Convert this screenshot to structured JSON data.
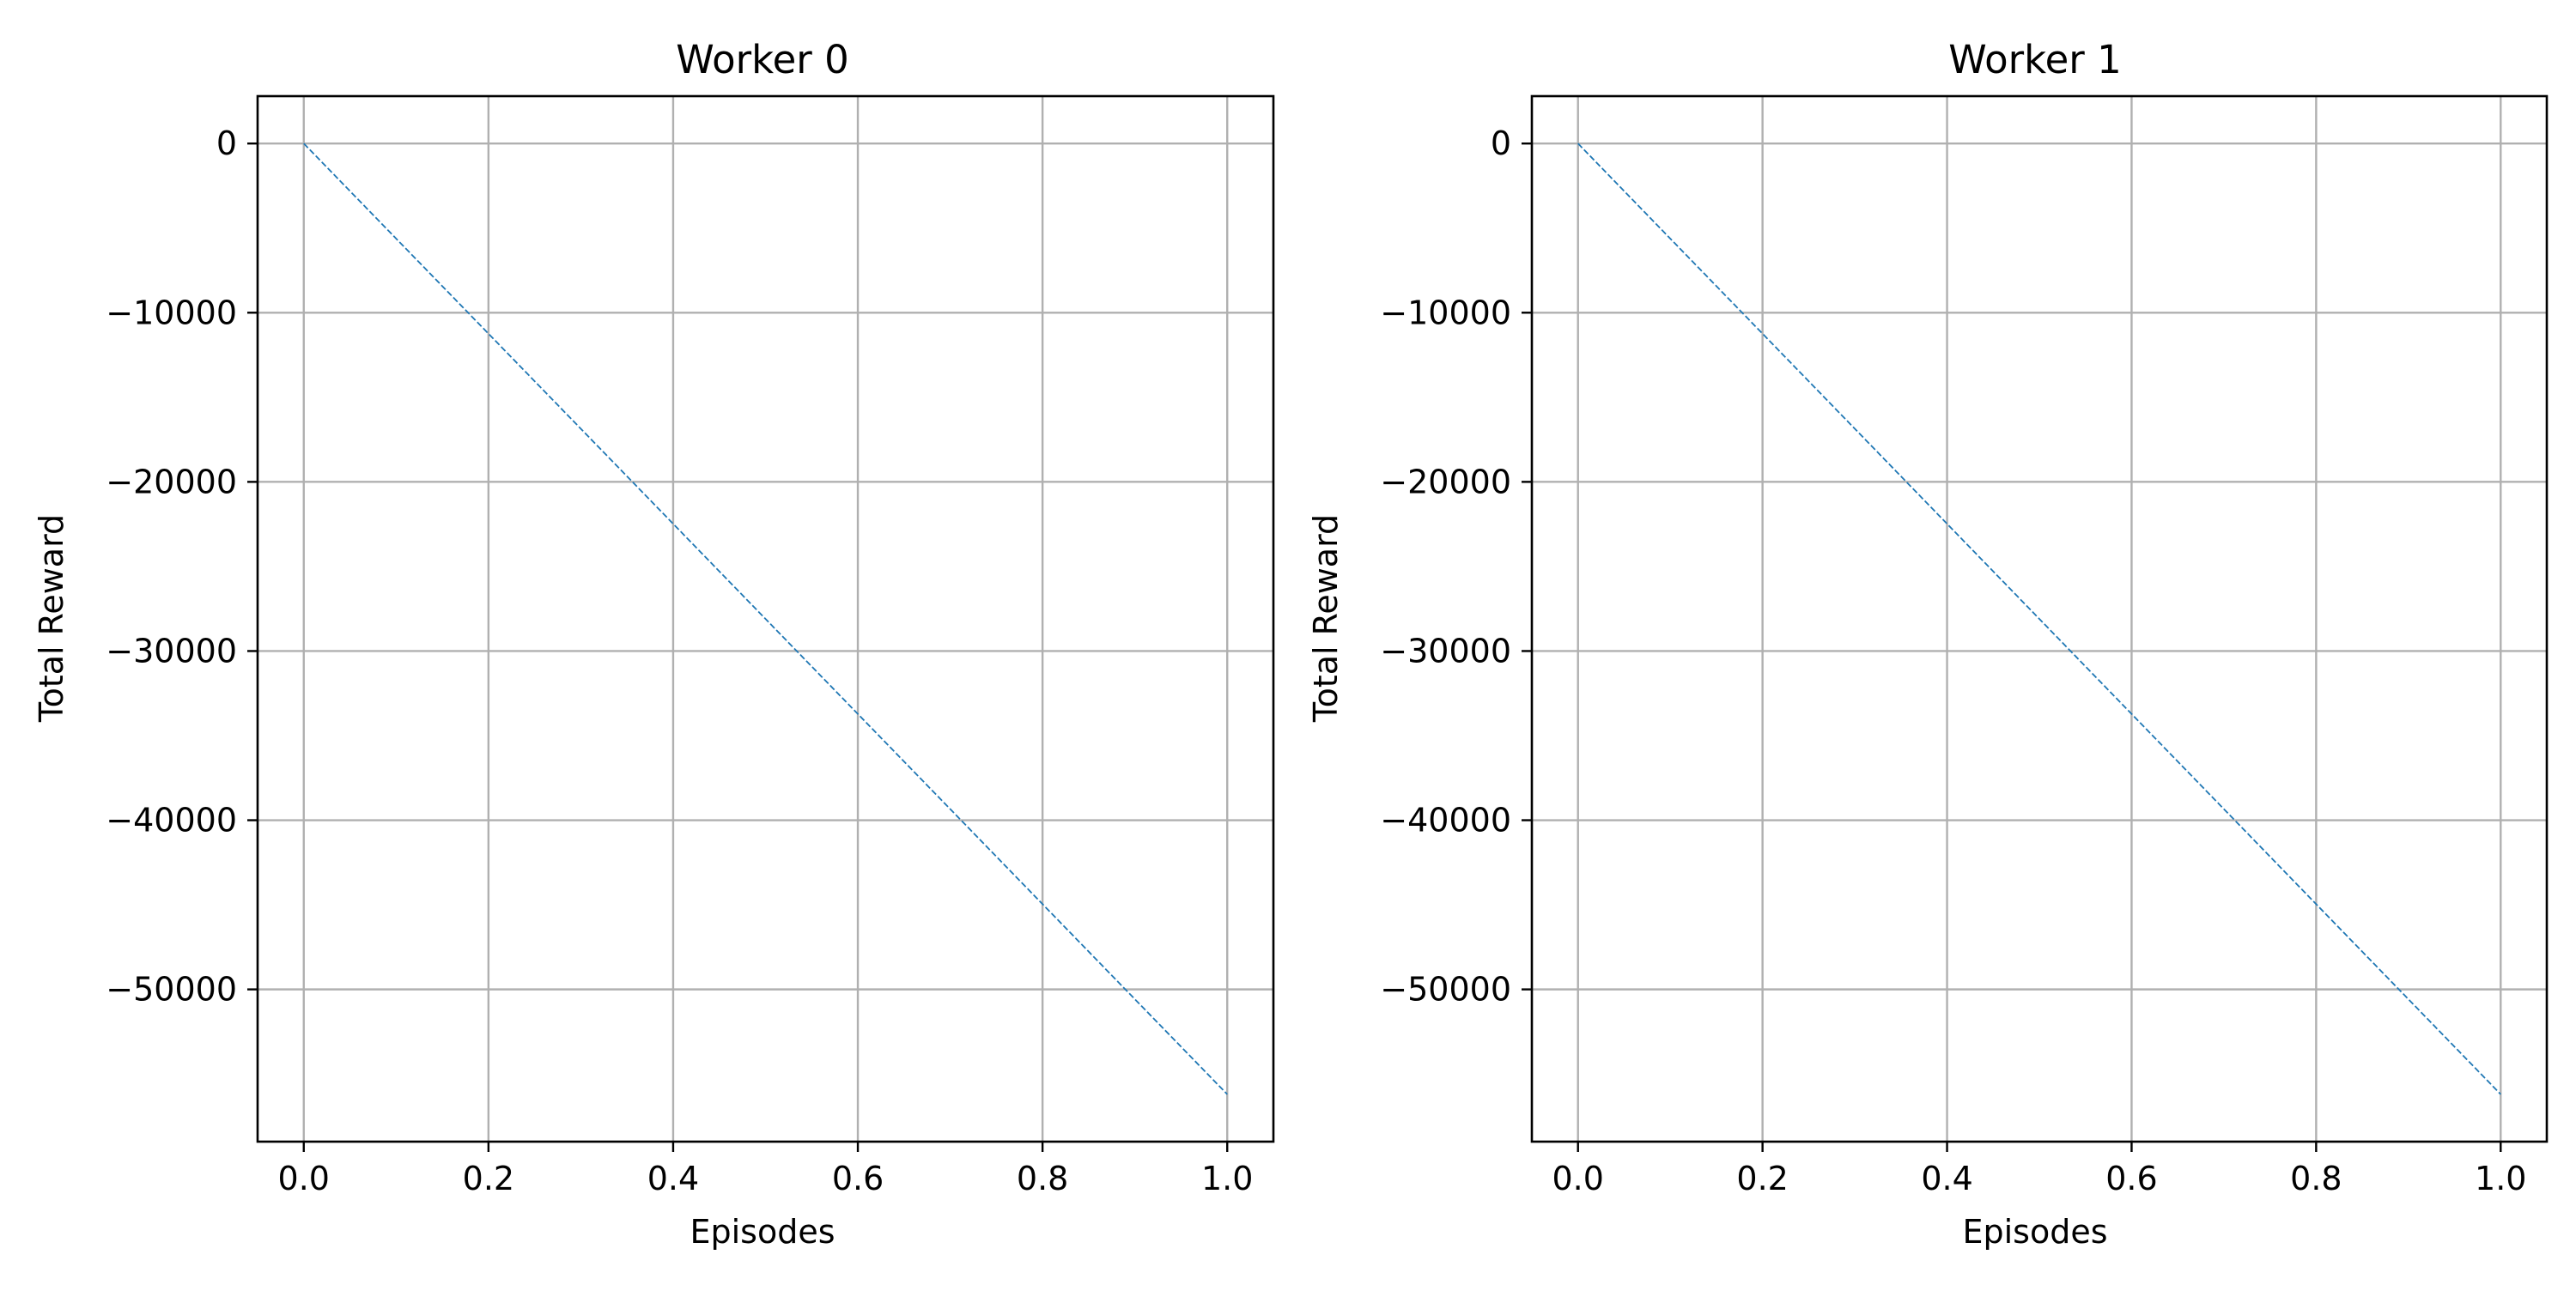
{
  "chart_data": [
    {
      "type": "line",
      "title": "Worker 0",
      "xlabel": "Episodes",
      "ylabel": "Total Reward",
      "xlim": [
        -0.05,
        1.05
      ],
      "ylim": [
        -59000,
        2800
      ],
      "xticks": [
        0.0,
        0.2,
        0.4,
        0.6,
        0.8,
        1.0
      ],
      "xtick_labels": [
        "0.0",
        "0.2",
        "0.4",
        "0.6",
        "0.8",
        "1.0"
      ],
      "yticks": [
        0,
        -10000,
        -20000,
        -30000,
        -40000,
        -50000
      ],
      "ytick_labels": [
        "0",
        "−10000",
        "−20000",
        "−30000",
        "−40000",
        "−50000"
      ],
      "grid": true,
      "series": [
        {
          "x": [
            0,
            1
          ],
          "y": [
            0,
            -56200
          ],
          "color": "#1f77b4",
          "linestyle": "dashed"
        }
      ]
    },
    {
      "type": "line",
      "title": "Worker 1",
      "xlabel": "Episodes",
      "ylabel": "Total Reward",
      "xlim": [
        -0.05,
        1.05
      ],
      "ylim": [
        -59000,
        2800
      ],
      "xticks": [
        0.0,
        0.2,
        0.4,
        0.6,
        0.8,
        1.0
      ],
      "xtick_labels": [
        "0.0",
        "0.2",
        "0.4",
        "0.6",
        "0.8",
        "1.0"
      ],
      "yticks": [
        0,
        -10000,
        -20000,
        -30000,
        -40000,
        -50000
      ],
      "ytick_labels": [
        "0",
        "−10000",
        "−20000",
        "−30000",
        "−40000",
        "−50000"
      ],
      "grid": true,
      "series": [
        {
          "x": [
            0,
            1
          ],
          "y": [
            0,
            -56200
          ],
          "color": "#1f77b4",
          "linestyle": "dashed"
        }
      ]
    }
  ]
}
